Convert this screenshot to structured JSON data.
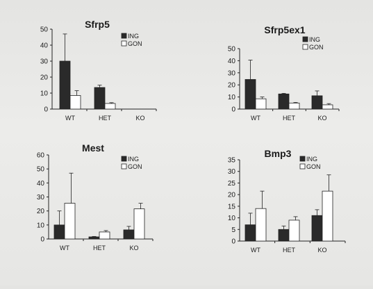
{
  "chart_data": [
    {
      "type": "bar",
      "title": "Sfrp5",
      "categories": [
        "WT",
        "HET",
        "KO"
      ],
      "series": [
        {
          "name": "ING",
          "values": [
            30,
            13.5,
            0
          ],
          "errors": [
            17,
            1.5,
            0
          ]
        },
        {
          "name": "GON",
          "values": [
            8.5,
            3.5,
            0
          ],
          "errors": [
            3,
            0.5,
            0
          ]
        }
      ],
      "ylim": [
        0,
        50
      ],
      "yticks": [
        "0",
        "10",
        "20",
        "30",
        "40",
        "50"
      ],
      "legend_position": "top-right",
      "grid": false
    },
    {
      "type": "bar",
      "title": "Sfrp5ex1",
      "categories": [
        "WT",
        "HET",
        "KO"
      ],
      "series": [
        {
          "name": "ING",
          "values": [
            24.5,
            12.5,
            11
          ],
          "errors": [
            16,
            0.5,
            4
          ]
        },
        {
          "name": "GON",
          "values": [
            8.5,
            5,
            3.5
          ],
          "errors": [
            1.5,
            0.5,
            1
          ]
        }
      ],
      "ylim": [
        0,
        50
      ],
      "yticks": [
        "0",
        "10",
        "20",
        "30",
        "40",
        "50"
      ],
      "legend_position": "top-right",
      "grid": false
    },
    {
      "type": "bar",
      "title": "Mest",
      "categories": [
        "WT",
        "HET",
        "KO"
      ],
      "series": [
        {
          "name": "ING",
          "values": [
            10,
            1.5,
            6.5
          ],
          "errors": [
            10,
            0.3,
            2.5
          ]
        },
        {
          "name": "GON",
          "values": [
            25.5,
            5,
            21.5
          ],
          "errors": [
            21.5,
            1,
            4
          ]
        }
      ],
      "ylim": [
        0,
        60
      ],
      "yticks": [
        "0",
        "10",
        "20",
        "30",
        "40",
        "50",
        "60"
      ],
      "legend_position": "top-right",
      "grid": false
    },
    {
      "type": "bar",
      "title": "Bmp3",
      "categories": [
        "WT",
        "HET",
        "KO"
      ],
      "series": [
        {
          "name": "ING",
          "values": [
            7,
            5,
            11
          ],
          "errors": [
            5,
            1.5,
            2.5
          ]
        },
        {
          "name": "GON",
          "values": [
            14,
            9,
            21.5
          ],
          "errors": [
            7.5,
            1.5,
            7
          ]
        }
      ],
      "ylim": [
        0,
        35
      ],
      "yticks": [
        "0",
        "5",
        "10",
        "15",
        "20",
        "25",
        "30",
        "35"
      ],
      "legend_position": "top-right",
      "grid": false
    }
  ]
}
